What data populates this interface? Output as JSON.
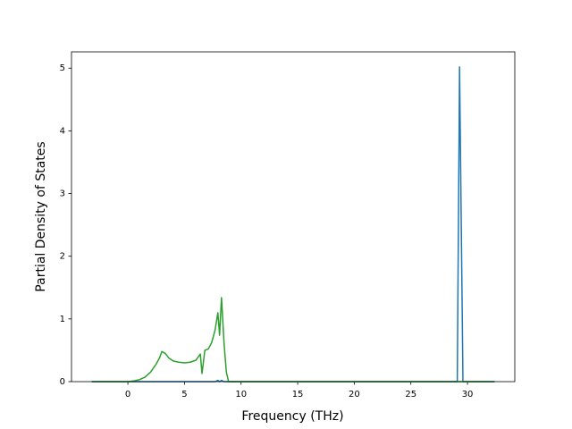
{
  "chart_data": {
    "type": "line",
    "xlabel": "Frequency (THz)",
    "ylabel": "Partial Density of States",
    "x": [
      -3.2,
      0,
      0.5,
      1,
      1.5,
      2,
      2.5,
      2.8,
      3.0,
      3.3,
      3.6,
      4.0,
      4.5,
      5.0,
      5.5,
      6.0,
      6.4,
      6.55,
      6.8,
      7.1,
      7.4,
      7.7,
      7.95,
      8.1,
      8.27,
      8.5,
      8.7,
      8.9,
      10,
      28.9,
      29.1,
      29.3,
      29.5,
      29.6,
      32.4
    ],
    "series": [
      {
        "color": "#1f77b4",
        "values": [
          0,
          0,
          0,
          0,
          0,
          0,
          0,
          0,
          0,
          0,
          0,
          0,
          0,
          0,
          0,
          0,
          0,
          0,
          0,
          0,
          0,
          0,
          0.02,
          0,
          0.02,
          0,
          0,
          0,
          0,
          0,
          0,
          5.02,
          1.7,
          0,
          0
        ]
      },
      {
        "color": "#2ca02c",
        "values": [
          0,
          0,
          0.01,
          0.03,
          0.07,
          0.15,
          0.28,
          0.38,
          0.48,
          0.45,
          0.38,
          0.33,
          0.31,
          0.3,
          0.31,
          0.34,
          0.44,
          0.13,
          0.5,
          0.52,
          0.62,
          0.82,
          1.1,
          0.74,
          1.34,
          0.6,
          0.15,
          0,
          0,
          0,
          0,
          0,
          0,
          0,
          0
        ]
      }
    ],
    "xlim": [
      -4.98,
      34.18
    ],
    "ylim": [
      0,
      5.26
    ],
    "xticks": [
      0,
      5,
      10,
      15,
      20,
      25,
      30
    ],
    "yticks": [
      0,
      1,
      2,
      3,
      4,
      5
    ]
  }
}
